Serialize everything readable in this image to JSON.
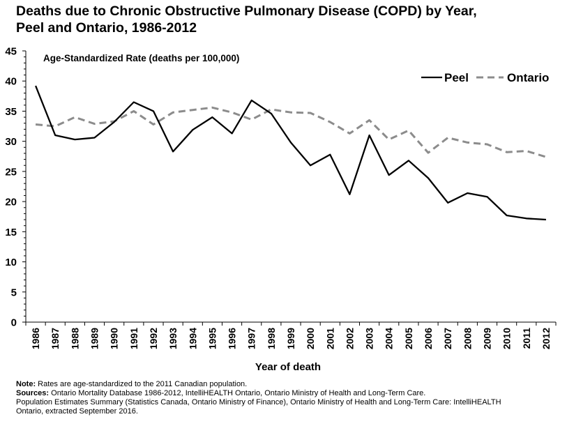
{
  "title_line1": "Deaths due to Chronic Obstructive Pulmonary Disease (COPD) by Year,",
  "title_line2": "Peel and Ontario, 1986-2012",
  "notes": {
    "note_label": "Note:",
    "note_text": " Rates are age-standardized to the 2011 Canadian population.",
    "sources_label": "Sources:",
    "sources_text": " Ontario Mortality Database 1986-2012, IntelliHEALTH Ontario, Ontario Ministry of Health and Long-Term Care.",
    "line3": "Population Estimates Summary (Statistics Canada, Ontario Ministry of Finance), Ontario Ministry of Health and Long-Term Care: IntelliHEALTH",
    "line4": "Ontario, extracted September 2016."
  },
  "chart_data": {
    "type": "line",
    "title": "Deaths due to Chronic Obstructive Pulmonary Disease (COPD) by Year, Peel and Ontario, 1986-2012",
    "ylabel": "Age-Standardized Rate (deaths per 100,000)",
    "xlabel": "Year of death",
    "ylim": [
      0,
      45
    ],
    "yticks": [
      0,
      5,
      10,
      15,
      20,
      25,
      30,
      35,
      40,
      45
    ],
    "grid": false,
    "legend_position": "top-right",
    "categories": [
      "1986",
      "1987",
      "1988",
      "1989",
      "1990",
      "1991",
      "1992",
      "1993",
      "1994",
      "1995",
      "1996",
      "1997",
      "1998",
      "1999",
      "2000",
      "2001",
      "2002",
      "2003",
      "2004",
      "2005",
      "2006",
      "2007",
      "2008",
      "2009",
      "2010",
      "2011",
      "2012"
    ],
    "series": [
      {
        "name": "Peel",
        "style": "solid",
        "color": "#000000",
        "values": [
          39.2,
          31.0,
          30.3,
          30.6,
          33.2,
          36.5,
          35.0,
          28.3,
          31.9,
          34.0,
          31.3,
          36.8,
          34.6,
          29.8,
          26.0,
          27.8,
          21.2,
          31.0,
          24.4,
          26.8,
          23.9,
          19.8,
          21.4,
          20.8,
          17.7,
          17.2,
          17.0
        ]
      },
      {
        "name": "Ontario",
        "style": "dashed",
        "color": "#8c8c8c",
        "values": [
          32.8,
          32.5,
          34.0,
          32.9,
          33.3,
          35.0,
          32.8,
          34.8,
          35.2,
          35.6,
          34.8,
          33.6,
          35.3,
          34.8,
          34.7,
          33.2,
          31.3,
          33.5,
          30.3,
          31.8,
          28.1,
          30.6,
          29.8,
          29.5,
          28.2,
          28.4,
          27.4
        ]
      }
    ]
  }
}
